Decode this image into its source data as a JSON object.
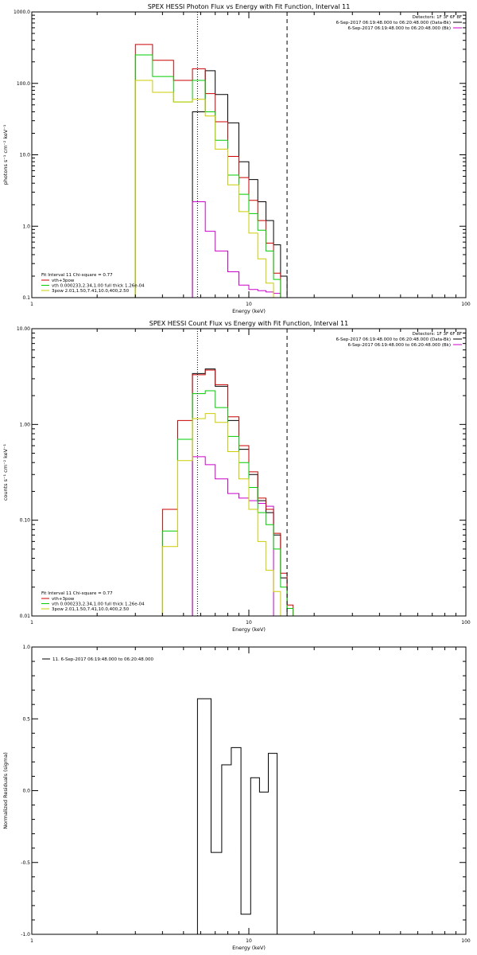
{
  "chart_data": [
    {
      "type": "line",
      "title": "SPEX HESSI Photon Flux vs Energy with Fit Function, Interval 11",
      "xlabel": "Energy (keV)",
      "ylabel": "photons s⁻¹ cm⁻² keV⁻¹",
      "x_scale": "log",
      "y_scale": "log",
      "xlim": [
        1,
        100
      ],
      "ylim": [
        0.1,
        1000
      ],
      "x_tick_labels": [
        "1",
        "10",
        "100"
      ],
      "y_tick_labels": [
        "0.1",
        "1.0",
        "10.0",
        "100.0",
        "1000.0"
      ],
      "vlines": [
        {
          "x": 5.8,
          "style": "dotted"
        },
        {
          "x": 15,
          "style": "dashed"
        }
      ],
      "legend_top_right": {
        "header": "Detectors: 1F 3F 6F 8F",
        "entries": [
          {
            "label": "6-Sep-2017 06:19:48.000 to 06:20:48.000 (Data-Bk)",
            "color": "#000000"
          },
          {
            "label": "6-Sep-2017 06:19:48.000 to 06:20:48.000 (Bk)",
            "color": "#cc00cc"
          }
        ]
      },
      "legend_bottom_left": {
        "header": "Fit Interval 11   Chi-square = 0.77",
        "entries": [
          {
            "label": "vth+3pow",
            "color": "#cc0000"
          },
          {
            "label": "vth 0.000233,2.34,1.00  full thick 1.26e-04",
            "color": "#00cc00"
          },
          {
            "label": "3pow 2.01,1.50,7.41,10.0,400,2.50",
            "color": "#cccc00"
          }
        ]
      },
      "bin_edges": [
        3.0,
        3.6,
        4.5,
        5.5,
        6.3,
        7.0,
        8.0,
        9.0,
        10.0,
        11.0,
        12.0,
        13.0,
        14.0,
        15.0,
        16.0,
        17.0
      ],
      "series": [
        {
          "name": "",
          "color": "#000000",
          "values": [
            null,
            null,
            null,
            40,
            150,
            70,
            28,
            8.0,
            4.5,
            2.2,
            1.2,
            0.55,
            0.2,
            null,
            null
          ]
        },
        {
          "name": "",
          "color": "#cc00cc",
          "values": [
            null,
            null,
            null,
            2.2,
            0.85,
            0.45,
            0.23,
            0.15,
            0.13,
            0.125,
            0.12,
            0.115,
            null,
            null,
            null
          ]
        },
        {
          "name": "vth+3pow",
          "color": "#cc0000",
          "values": [
            350,
            210,
            110,
            160,
            72,
            29,
            9.5,
            4.8,
            2.3,
            1.2,
            0.58,
            0.22,
            null,
            null,
            null
          ]
        },
        {
          "name": "vth 0.000233,2.34,1.00  full thick 1.26e-04",
          "color": "#00cc00",
          "values": [
            250,
            125,
            55,
            110,
            40,
            16,
            5.2,
            2.8,
            1.5,
            0.88,
            0.45,
            0.18,
            null,
            null,
            null
          ]
        },
        {
          "name": "3pow 2.01,1.50,7.41,10.0,400,2.50",
          "color": "#cccc00",
          "values": [
            110,
            75,
            55,
            60,
            35,
            12,
            3.8,
            1.6,
            0.8,
            0.35,
            0.16,
            null,
            null,
            null,
            null
          ]
        }
      ]
    },
    {
      "type": "line",
      "title": "SPEX HESSI Count Flux vs Energy with Fit Function, Interval 11",
      "xlabel": "Energy (keV)",
      "ylabel": "counts s⁻¹ cm⁻² keV⁻¹",
      "x_scale": "log",
      "y_scale": "log",
      "xlim": [
        1,
        100
      ],
      "ylim": [
        0.01,
        10
      ],
      "x_tick_labels": [
        "1",
        "10",
        "100"
      ],
      "y_tick_labels": [
        "0.01",
        "0.10",
        "1.00",
        "10.00"
      ],
      "vlines": [
        {
          "x": 5.8,
          "style": "dotted"
        },
        {
          "x": 15,
          "style": "dashed"
        }
      ],
      "legend_top_right": {
        "header": "Detectors: 1F 3F 6F 8F",
        "entries": [
          {
            "label": "6-Sep-2017 06:19:48.000 to 06:20:48.000 (Data-Bk)",
            "color": "#000000"
          },
          {
            "label": "6-Sep-2017 06:19:48.000 to 06:20:48.000 (Bk)",
            "color": "#cc00cc"
          }
        ]
      },
      "legend_bottom_left": {
        "header": "Fit Interval 11   Chi-square = 0.77",
        "entries": [
          {
            "label": "vth+3pow",
            "color": "#cc0000"
          },
          {
            "label": "vth 0.000233,2.34,1.00  full thick 1.26e-04",
            "color": "#00cc00"
          },
          {
            "label": "3pow 2.01,1.50,7.41,10.0,400,2.50",
            "color": "#cccc00"
          }
        ]
      },
      "bin_edges": [
        4.0,
        4.7,
        5.5,
        6.3,
        7.0,
        8.0,
        9.0,
        10.0,
        11.0,
        12.0,
        13.0,
        14.0,
        15.0,
        16.0,
        17.0,
        18.0
      ],
      "series": [
        {
          "name": "",
          "color": "#000000",
          "values": [
            null,
            null,
            3.4,
            3.8,
            2.5,
            1.1,
            0.55,
            0.3,
            0.16,
            0.12,
            0.07,
            0.025,
            null,
            null,
            null
          ]
        },
        {
          "name": "",
          "color": "#cc00cc",
          "values": [
            null,
            null,
            0.46,
            0.38,
            0.27,
            0.19,
            0.17,
            0.16,
            0.15,
            0.14,
            null,
            null,
            null,
            null,
            null
          ]
        },
        {
          "name": "vth+3pow",
          "color": "#cc0000",
          "values": [
            0.13,
            1.1,
            3.3,
            3.7,
            2.6,
            1.2,
            0.6,
            0.32,
            0.17,
            0.13,
            0.073,
            0.028,
            0.013,
            null,
            null
          ]
        },
        {
          "name": "vth 0.000233,2.34,1.00  full thick 1.26e-04",
          "color": "#00cc00",
          "values": [
            0.077,
            0.7,
            2.1,
            2.25,
            1.5,
            0.75,
            0.4,
            0.22,
            0.12,
            0.09,
            0.05,
            0.02,
            0.012,
            null,
            null
          ]
        },
        {
          "name": "3pow 2.01,1.50,7.41,10.0,400,2.50",
          "color": "#cccc00",
          "values": [
            0.053,
            0.42,
            1.15,
            1.3,
            1.05,
            0.52,
            0.27,
            0.13,
            0.06,
            0.03,
            0.018,
            null,
            null,
            null,
            null
          ]
        }
      ]
    },
    {
      "type": "line",
      "title": "",
      "xlabel": "Energy (keV)",
      "ylabel": "Normalized Residuals (sigma)",
      "x_scale": "log",
      "y_scale": "linear",
      "xlim": [
        1,
        100
      ],
      "ylim": [
        -1,
        1
      ],
      "x_tick_labels": [
        "1",
        "10",
        "100"
      ],
      "y_tick_labels": [
        "-1.0",
        "-0.5",
        "0.0",
        "0.5",
        "1.0"
      ],
      "legend_top_left": {
        "entries": [
          {
            "label": "11.  6-Sep-2017 06:19:48.000 to 06:20:48.000",
            "color": "#000000"
          }
        ]
      },
      "bin_edges": [
        5.8,
        6.7,
        7.5,
        8.3,
        9.2,
        10.2,
        11.2,
        12.3,
        13.5,
        14.9
      ],
      "series": [
        {
          "name": "11.  6-Sep-2017 06:19:48.000 to 06:20:48.000",
          "color": "#000000",
          "values": [
            0.64,
            -0.43,
            0.18,
            0.3,
            -0.86,
            0.09,
            -0.01,
            0.26,
            null
          ]
        }
      ]
    }
  ]
}
